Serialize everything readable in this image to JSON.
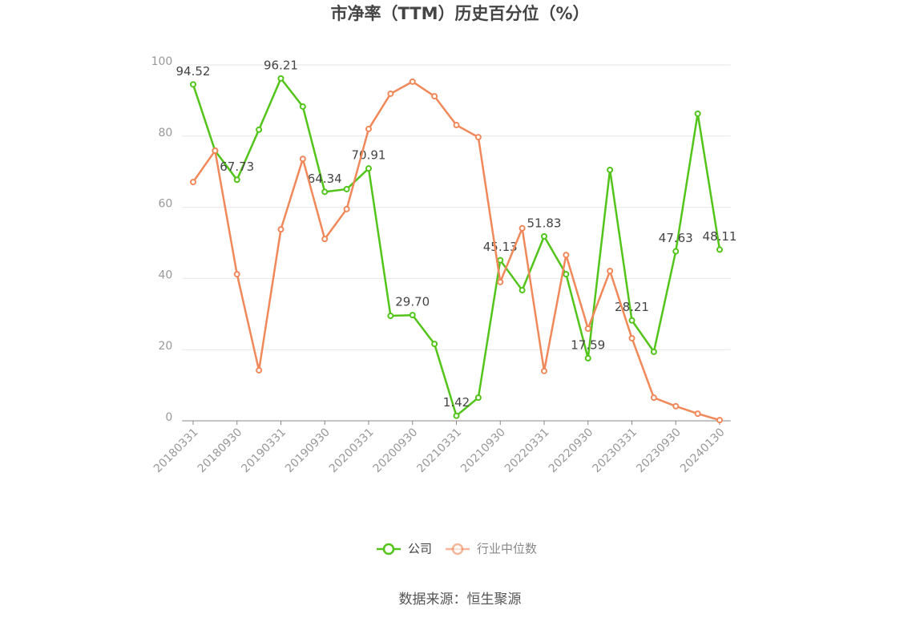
{
  "chart_data": {
    "type": "line",
    "title": "市净率（TTM）历史百分位（%）",
    "source": "数据来源：恒生聚源",
    "categories": [
      "20180331",
      null,
      "20180930",
      null,
      "20190331",
      null,
      "20190930",
      null,
      "20200331",
      null,
      "20200930",
      null,
      "20210331",
      null,
      "20210930",
      null,
      "20220331",
      null,
      "20220930",
      null,
      "20230331",
      null,
      "20230930",
      null,
      "20240130"
    ],
    "ylim": [
      0,
      100
    ],
    "yticks": [
      0,
      20,
      40,
      60,
      80,
      100
    ],
    "grid": true,
    "legend": "bottom",
    "series": [
      {
        "name": "公司",
        "color": "#52c41a",
        "values": [
          94.52,
          75.9,
          67.73,
          81.8,
          96.21,
          88.3,
          64.34,
          65.1,
          70.91,
          29.5,
          29.7,
          21.6,
          1.42,
          6.5,
          45.13,
          36.7,
          51.83,
          41.2,
          17.59,
          70.5,
          28.21,
          19.4,
          47.63,
          86.3,
          48.11
        ],
        "value_labels": [
          "94.52",
          null,
          "67.73",
          null,
          "96.21",
          null,
          "64.34",
          null,
          "70.91",
          null,
          "29.70",
          null,
          "1.42",
          null,
          "45.13",
          null,
          "51.83",
          null,
          "17.59",
          null,
          "28.21",
          null,
          "47.63",
          null,
          "48.11"
        ]
      },
      {
        "name": "行业中位数",
        "color": "#f0885a",
        "values": [
          67.1,
          75.9,
          41.2,
          14.2,
          53.8,
          73.6,
          51.1,
          59.5,
          82.0,
          91.9,
          95.3,
          91.2,
          83.1,
          79.7,
          39.0,
          54.1,
          14.0,
          46.6,
          25.9,
          42.1,
          23.2,
          6.5,
          4.1,
          2.0,
          0.2
        ]
      }
    ]
  }
}
